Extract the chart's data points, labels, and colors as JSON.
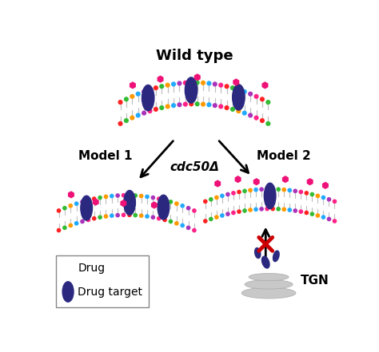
{
  "title": "Wild type",
  "cdc50_label": "cdc50Δ",
  "model1_label": "Model 1",
  "model2_label": "Model 2",
  "tgn_label": "TGN",
  "drug_label": "Drug",
  "drug_target_label": "Drug target",
  "drug_color": "#EE1177",
  "lipid_head_colors": [
    "#FF2222",
    "#33BB33",
    "#FF9900",
    "#22AAFF",
    "#AA33BB",
    "#FF2288"
  ],
  "protein_color": "#2B2880",
  "bg_color": "#FFFFFF",
  "cross_color": "#CC0000",
  "tgn_color": "#C8C8C8",
  "membrane_tail_color": "#C0C0C0",
  "legend_box_color": "#888888"
}
